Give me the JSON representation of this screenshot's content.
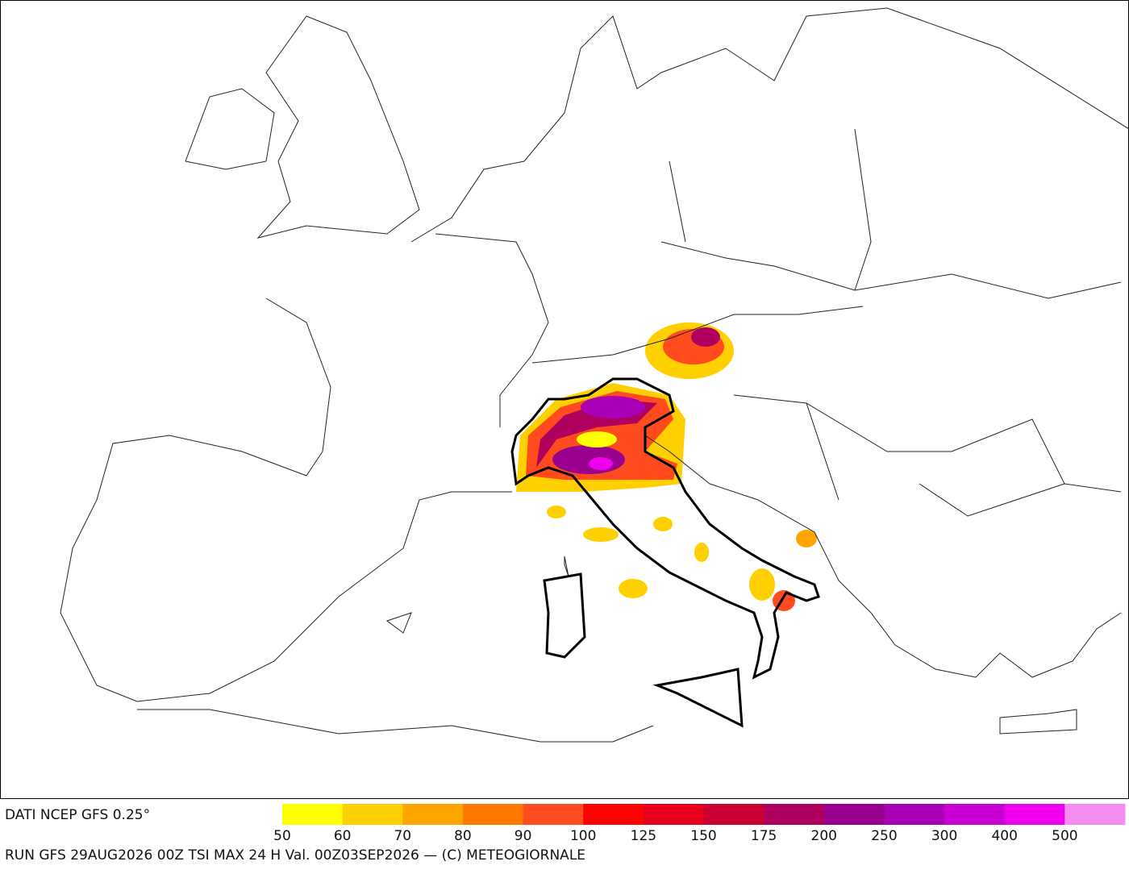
{
  "footer": {
    "source": "DATI NCEP GFS 0.25°",
    "run": "RUN GFS 29AUG2026 00Z TSI MAX 24 H Val. 00Z03SEP2026 — (C) METEOGIORNALE"
  },
  "legend": {
    "colors": [
      "#ffff00",
      "#ffd000",
      "#ffa500",
      "#ff7800",
      "#ff4b1e",
      "#ff0000",
      "#e6001e",
      "#cc0032",
      "#b0005f",
      "#9a0090",
      "#a800b4",
      "#c800d2",
      "#ee00ee",
      "#f58cf0"
    ],
    "labels": [
      50,
      60,
      70,
      80,
      90,
      100,
      125,
      150,
      175,
      200,
      250,
      300,
      400,
      500
    ]
  }
}
